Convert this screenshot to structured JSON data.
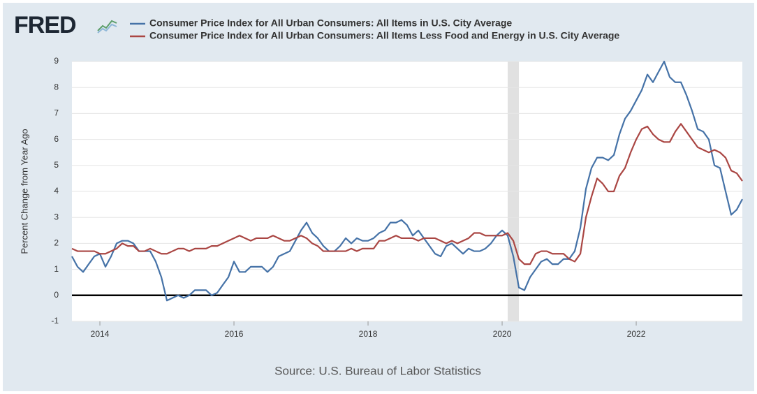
{
  "chart_data": {
    "type": "line",
    "logo": "FRED",
    "y_label": "Percent Change from Year Ago",
    "source": "Source: U.S. Bureau of Labor Statistics",
    "xlim": [
      2013.583,
      2023.583
    ],
    "xticks": [
      2014,
      2016,
      2018,
      2020,
      2022
    ],
    "ylim": [
      -1,
      9
    ],
    "yticks": [
      -1,
      0,
      1,
      2,
      3,
      4,
      5,
      6,
      7,
      8,
      9
    ],
    "grid": true,
    "recessions": [
      [
        2020.083,
        2020.25
      ]
    ],
    "x": [
      2013.583,
      2013.667,
      2013.75,
      2013.833,
      2013.917,
      2014,
      2014.083,
      2014.167,
      2014.25,
      2014.333,
      2014.417,
      2014.5,
      2014.583,
      2014.667,
      2014.75,
      2014.833,
      2014.917,
      2015,
      2015.083,
      2015.167,
      2015.25,
      2015.333,
      2015.417,
      2015.5,
      2015.583,
      2015.667,
      2015.75,
      2015.833,
      2015.917,
      2016,
      2016.083,
      2016.167,
      2016.25,
      2016.333,
      2016.417,
      2016.5,
      2016.583,
      2016.667,
      2016.75,
      2016.833,
      2016.917,
      2017,
      2017.083,
      2017.167,
      2017.25,
      2017.333,
      2017.417,
      2017.5,
      2017.583,
      2017.667,
      2017.75,
      2017.833,
      2017.917,
      2018,
      2018.083,
      2018.167,
      2018.25,
      2018.333,
      2018.417,
      2018.5,
      2018.583,
      2018.667,
      2018.75,
      2018.833,
      2018.917,
      2019,
      2019.083,
      2019.167,
      2019.25,
      2019.333,
      2019.417,
      2019.5,
      2019.583,
      2019.667,
      2019.75,
      2019.833,
      2019.917,
      2020,
      2020.083,
      2020.167,
      2020.25,
      2020.333,
      2020.417,
      2020.5,
      2020.583,
      2020.667,
      2020.75,
      2020.833,
      2020.917,
      2021,
      2021.083,
      2021.167,
      2021.25,
      2021.333,
      2021.417,
      2021.5,
      2021.583,
      2021.667,
      2021.75,
      2021.833,
      2021.917,
      2022,
      2022.083,
      2022.167,
      2022.25,
      2022.333,
      2022.417,
      2022.5,
      2022.583,
      2022.667,
      2022.75,
      2022.833,
      2022.917,
      2023,
      2023.083,
      2023.167,
      2023.25,
      2023.333,
      2023.417,
      2023.5,
      2023.583
    ],
    "series": [
      {
        "name": "Consumer Price Index for All Urban Consumers: All Items in U.S. City Average",
        "color": "#4572a7",
        "values": [
          1.5,
          1.1,
          0.9,
          1.2,
          1.5,
          1.6,
          1.1,
          1.5,
          2.0,
          2.1,
          2.1,
          2.0,
          1.7,
          1.7,
          1.7,
          1.3,
          0.7,
          -0.2,
          -0.1,
          0.0,
          -0.1,
          0.0,
          0.2,
          0.2,
          0.2,
          0.0,
          0.1,
          0.4,
          0.7,
          1.3,
          0.9,
          0.9,
          1.1,
          1.1,
          1.1,
          0.9,
          1.1,
          1.5,
          1.6,
          1.7,
          2.1,
          2.5,
          2.8,
          2.4,
          2.2,
          1.9,
          1.7,
          1.7,
          1.9,
          2.2,
          2.0,
          2.2,
          2.1,
          2.1,
          2.2,
          2.4,
          2.5,
          2.8,
          2.8,
          2.9,
          2.7,
          2.3,
          2.5,
          2.2,
          1.9,
          1.6,
          1.5,
          1.9,
          2.0,
          1.8,
          1.6,
          1.8,
          1.7,
          1.7,
          1.8,
          2.0,
          2.3,
          2.5,
          2.3,
          1.5,
          0.3,
          0.2,
          0.7,
          1.0,
          1.3,
          1.4,
          1.2,
          1.2,
          1.4,
          1.4,
          1.7,
          2.6,
          4.1,
          4.9,
          5.3,
          5.3,
          5.2,
          5.4,
          6.2,
          6.8,
          7.1,
          7.5,
          7.9,
          8.5,
          8.2,
          8.6,
          9.0,
          8.4,
          8.2,
          8.2,
          7.7,
          7.1,
          6.4,
          6.3,
          6.0,
          5.0,
          4.9,
          4.0,
          3.1,
          3.3,
          3.7
        ]
      },
      {
        "name": "Consumer Price Index for All Urban Consumers: All Items Less Food and Energy in U.S. City Average",
        "color": "#aa4643",
        "values": [
          1.8,
          1.7,
          1.7,
          1.7,
          1.7,
          1.6,
          1.6,
          1.7,
          1.8,
          2.0,
          1.9,
          1.9,
          1.7,
          1.7,
          1.8,
          1.7,
          1.6,
          1.6,
          1.7,
          1.8,
          1.8,
          1.7,
          1.8,
          1.8,
          1.8,
          1.9,
          1.9,
          2.0,
          2.1,
          2.2,
          2.3,
          2.2,
          2.1,
          2.2,
          2.2,
          2.2,
          2.3,
          2.2,
          2.1,
          2.1,
          2.2,
          2.3,
          2.2,
          2.0,
          1.9,
          1.7,
          1.7,
          1.7,
          1.7,
          1.7,
          1.8,
          1.7,
          1.8,
          1.8,
          1.8,
          2.1,
          2.1,
          2.2,
          2.3,
          2.2,
          2.2,
          2.2,
          2.1,
          2.2,
          2.2,
          2.2,
          2.1,
          2.0,
          2.1,
          2.0,
          2.1,
          2.2,
          2.4,
          2.4,
          2.3,
          2.3,
          2.3,
          2.3,
          2.4,
          2.1,
          1.4,
          1.2,
          1.2,
          1.6,
          1.7,
          1.7,
          1.6,
          1.6,
          1.6,
          1.4,
          1.3,
          1.6,
          3.0,
          3.8,
          4.5,
          4.3,
          4.0,
          4.0,
          4.6,
          4.9,
          5.5,
          6.0,
          6.4,
          6.5,
          6.2,
          6.0,
          5.9,
          5.9,
          6.3,
          6.6,
          6.3,
          6.0,
          5.7,
          5.6,
          5.5,
          5.6,
          5.5,
          5.3,
          4.8,
          4.7,
          4.4
        ]
      }
    ]
  }
}
